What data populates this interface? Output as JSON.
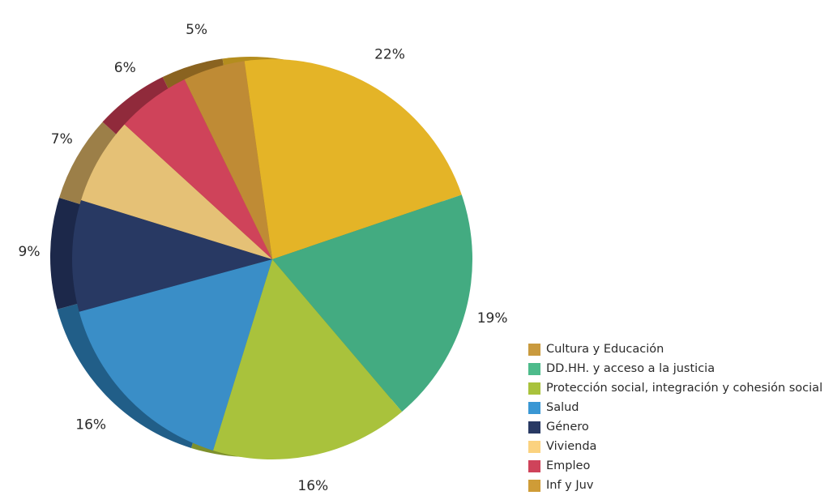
{
  "chart_data": {
    "type": "pie",
    "title": "",
    "slices": [
      {
        "label": "Inf y Juv",
        "value": 22,
        "value_label": "22%",
        "color": "#e4b427",
        "side_color": "#b48d1e"
      },
      {
        "label": "DD.HH. y acceso a la justicia",
        "value": 19,
        "value_label": "19%",
        "color": "#43ab81",
        "side_color": "#2f7d5d"
      },
      {
        "label": "Protección social, integración y cohesión social",
        "value": 16,
        "value_label": "16%",
        "color": "#a9c23c",
        "side_color": "#7d902c"
      },
      {
        "label": "Salud",
        "value": 16,
        "value_label": "16%",
        "color": "#3a8ec7",
        "side_color": "#215e88"
      },
      {
        "label": "Género",
        "value": 9,
        "value_label": "9%",
        "color": "#283963",
        "side_color": "#1c284a"
      },
      {
        "label": "Vivienda",
        "value": 7,
        "value_label": "7%",
        "color": "#e5c176",
        "side_color": "#9c7f48"
      },
      {
        "label": "Empleo",
        "value": 6,
        "value_label": "6%",
        "color": "#cf435a",
        "side_color": "#902a3b"
      },
      {
        "label": "Cultura y Educación",
        "value": 5,
        "value_label": "5%",
        "color": "#bf8b35",
        "side_color": "#8a6320"
      }
    ]
  },
  "legend": {
    "items": [
      {
        "label": "Cultura y Educación",
        "color": "#c99a3e"
      },
      {
        "label": "DD.HH. y acceso a la justicia",
        "color": "#4dbb8b"
      },
      {
        "label": "Protección social, integración y cohesión social",
        "color": "#a9c23c"
      },
      {
        "label": "Salud",
        "color": "#3a97d4"
      },
      {
        "label": "Género",
        "color": "#283963"
      },
      {
        "label": "Vivienda",
        "color": "#fbd27f"
      },
      {
        "label": "Empleo",
        "color": "#cf435a"
      },
      {
        "label": "Inf y Juv",
        "color": "#cf9c37"
      }
    ]
  }
}
